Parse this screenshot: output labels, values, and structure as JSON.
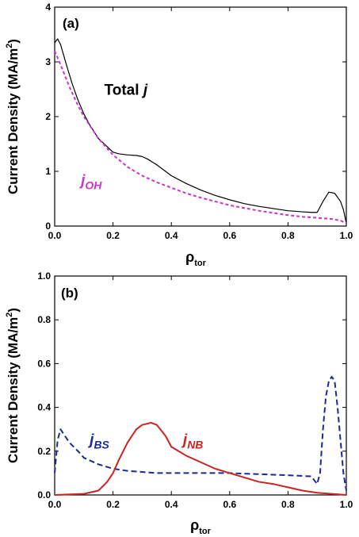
{
  "chart_data": [
    {
      "type": "line",
      "panel_label": "(a)",
      "xlabel": "ρ",
      "xlabel_sub": "tor",
      "ylabel": "Current Density (MA/m",
      "ylabel_sup": "2",
      "ylabel_close": ")",
      "xlim": [
        0,
        1.0
      ],
      "ylim": [
        0,
        4
      ],
      "xticks": [
        "0.0",
        "0.2",
        "0.4",
        "0.6",
        "0.8",
        "1.0"
      ],
      "yticks": [
        "0",
        "1",
        "2",
        "3",
        "4"
      ],
      "series": [
        {
          "color": "#000000",
          "dash": "solid",
          "x": [
            0.0,
            0.01,
            0.02,
            0.04,
            0.06,
            0.08,
            0.1,
            0.12,
            0.15,
            0.18,
            0.2,
            0.22,
            0.25,
            0.28,
            0.3,
            0.32,
            0.35,
            0.38,
            0.4,
            0.45,
            0.5,
            0.55,
            0.6,
            0.65,
            0.7,
            0.75,
            0.8,
            0.85,
            0.88,
            0.9,
            0.92,
            0.94,
            0.96,
            0.98,
            0.99,
            1.0
          ],
          "y": [
            3.35,
            3.42,
            3.32,
            2.95,
            2.6,
            2.3,
            2.05,
            1.85,
            1.6,
            1.45,
            1.35,
            1.32,
            1.3,
            1.29,
            1.27,
            1.22,
            1.12,
            1.0,
            0.92,
            0.78,
            0.66,
            0.56,
            0.48,
            0.41,
            0.36,
            0.32,
            0.28,
            0.26,
            0.25,
            0.25,
            0.45,
            0.62,
            0.6,
            0.45,
            0.3,
            0.05
          ]
        },
        {
          "color": "#cc33cc",
          "dash": "dashed",
          "x": [
            0.0,
            0.02,
            0.05,
            0.08,
            0.1,
            0.15,
            0.2,
            0.25,
            0.3,
            0.35,
            0.4,
            0.45,
            0.5,
            0.55,
            0.6,
            0.65,
            0.7,
            0.75,
            0.8,
            0.85,
            0.9,
            0.95,
            0.98,
            1.0
          ],
          "y": [
            3.2,
            2.95,
            2.55,
            2.2,
            2.0,
            1.6,
            1.3,
            1.08,
            0.92,
            0.8,
            0.7,
            0.6,
            0.52,
            0.45,
            0.38,
            0.33,
            0.28,
            0.24,
            0.2,
            0.17,
            0.15,
            0.13,
            0.1,
            0.05
          ]
        }
      ],
      "annotations": [
        {
          "text": "Total ",
          "italic_part": "j",
          "sub": "",
          "color": "#000000",
          "x": 0.17,
          "y": 2.4
        },
        {
          "text": "",
          "italic_part": "j",
          "sub": "OH",
          "color": "#cc33cc",
          "x": 0.09,
          "y": 0.75
        }
      ]
    },
    {
      "type": "line",
      "panel_label": "(b)",
      "xlabel": "ρ",
      "xlabel_sub": "tor",
      "ylabel": "Current Density (MA/m",
      "ylabel_sup": "2",
      "ylabel_close": ")",
      "xlim": [
        0,
        1.0
      ],
      "ylim": [
        0,
        1.0
      ],
      "xticks": [
        "0.0",
        "0.2",
        "0.4",
        "0.6",
        "0.8",
        "1.0"
      ],
      "yticks": [
        "0.0",
        "0.2",
        "0.4",
        "0.6",
        "0.8",
        "1.0"
      ],
      "series": [
        {
          "color": "#1a2a99",
          "dash": "dashed",
          "x": [
            0.0,
            0.01,
            0.02,
            0.03,
            0.05,
            0.08,
            0.1,
            0.15,
            0.2,
            0.25,
            0.3,
            0.35,
            0.4,
            0.5,
            0.6,
            0.7,
            0.8,
            0.88,
            0.9,
            0.91,
            0.92,
            0.93,
            0.94,
            0.95,
            0.96,
            0.97,
            0.98,
            0.99,
            1.0
          ],
          "y": [
            0.1,
            0.25,
            0.3,
            0.28,
            0.24,
            0.2,
            0.17,
            0.14,
            0.12,
            0.11,
            0.105,
            0.1,
            0.1,
            0.1,
            0.1,
            0.095,
            0.09,
            0.085,
            0.05,
            0.1,
            0.3,
            0.45,
            0.52,
            0.54,
            0.52,
            0.4,
            0.25,
            0.1,
            0.02
          ]
        },
        {
          "color": "#cc2222",
          "dash": "solid",
          "x": [
            0.0,
            0.1,
            0.15,
            0.18,
            0.2,
            0.22,
            0.25,
            0.28,
            0.3,
            0.33,
            0.35,
            0.38,
            0.4,
            0.45,
            0.5,
            0.55,
            0.6,
            0.65,
            0.7,
            0.75,
            0.8,
            0.85,
            0.9,
            0.95,
            1.0
          ],
          "y": [
            0.0,
            0.005,
            0.02,
            0.06,
            0.1,
            0.16,
            0.24,
            0.3,
            0.32,
            0.33,
            0.32,
            0.27,
            0.22,
            0.18,
            0.15,
            0.12,
            0.1,
            0.08,
            0.06,
            0.05,
            0.035,
            0.02,
            0.01,
            0.005,
            0.0
          ]
        }
      ],
      "annotations": [
        {
          "text": "",
          "italic_part": "j",
          "sub": "BS",
          "color": "#1a2a99",
          "x": 0.12,
          "y": 0.23
        },
        {
          "text": "",
          "italic_part": "j",
          "sub": "NB",
          "color": "#cc2222",
          "x": 0.44,
          "y": 0.23
        }
      ]
    }
  ]
}
